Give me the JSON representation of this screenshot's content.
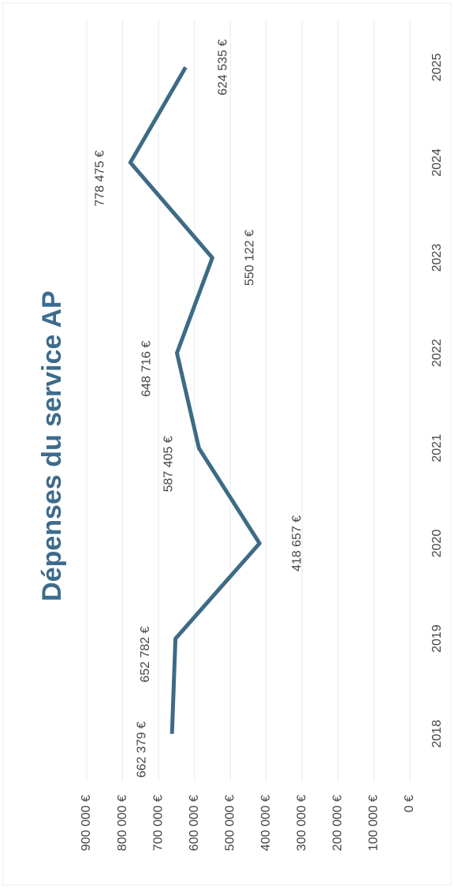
{
  "chart_data": {
    "type": "line",
    "title": "Dépenses du service AP",
    "categories": [
      "2018",
      "2019",
      "2020",
      "2021",
      "2022",
      "2023",
      "2024",
      "2025"
    ],
    "series": [
      {
        "name": "Dépenses",
        "color": "#3d6b86",
        "values": [
          662379,
          652782,
          418657,
          587405,
          648716,
          550122,
          778475,
          624535
        ],
        "value_labels": [
          "662 379 €",
          "652 782 €",
          "418 657 €",
          "587 405 €",
          "648 716 €",
          "550 122 €",
          "778 475 €",
          "624 535 €"
        ]
      }
    ],
    "ylim": [
      0,
      900000
    ],
    "yticks": [
      {
        "value": 0,
        "label": "0 €"
      },
      {
        "value": 100000,
        "label": "100 000 €"
      },
      {
        "value": 200000,
        "label": "200 000 €"
      },
      {
        "value": 300000,
        "label": "300 000 €"
      },
      {
        "value": 400000,
        "label": "400 000 €"
      },
      {
        "value": 500000,
        "label": "500 000 €"
      },
      {
        "value": 600000,
        "label": "600 000 €"
      },
      {
        "value": 700000,
        "label": "700 000 €"
      },
      {
        "value": 800000,
        "label": "800 000 €"
      },
      {
        "value": 900000,
        "label": "900 000 €"
      }
    ],
    "grid": true
  }
}
